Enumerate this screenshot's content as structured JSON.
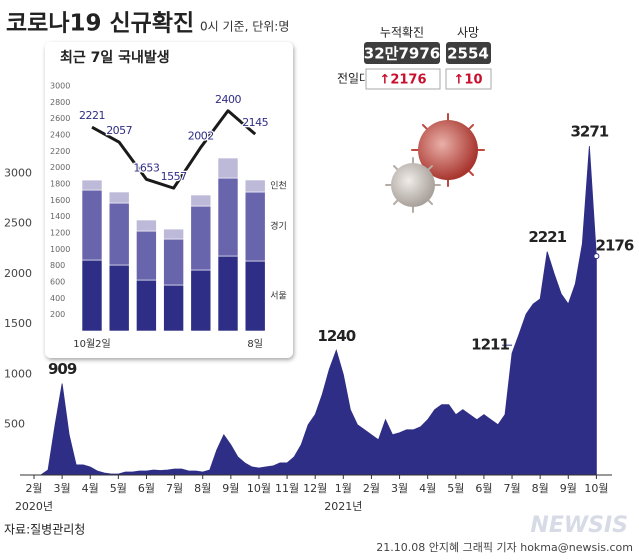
{
  "header": {
    "title": "코로나19 신규확진",
    "subtitle": "0시 기준, 단위:명"
  },
  "stats": {
    "total_label": "누적확진",
    "total_value": "32만7976",
    "death_label": "사망",
    "death_value": "2554",
    "change_label": "전일대비",
    "total_change": "↑2176",
    "death_change": "↑10"
  },
  "chart_data": [
    {
      "type": "area",
      "color": "#2f2e86",
      "categories": [
        "2월",
        null,
        null,
        null,
        "3월",
        null,
        null,
        null,
        "4월",
        null,
        null,
        null,
        "5월",
        null,
        null,
        null,
        "6월",
        null,
        null,
        null,
        "7월",
        null,
        null,
        null,
        "8월",
        null,
        null,
        null,
        "9월",
        null,
        null,
        null,
        "10월",
        null,
        null,
        null,
        "11월",
        null,
        null,
        null,
        "12월",
        null,
        null,
        null,
        "1월",
        null,
        null,
        null,
        "2월",
        null,
        null,
        null,
        "3월",
        null,
        null,
        null,
        "4월",
        null,
        null,
        null,
        "5월",
        null,
        null,
        null,
        "6월",
        null,
        null,
        null,
        "7월",
        null,
        null,
        null,
        "8월",
        null,
        null,
        null,
        "9월",
        null,
        null,
        null,
        "10월"
      ],
      "year_labels": [
        "2020년",
        "2021년"
      ],
      "values": [
        1,
        2,
        50,
        500,
        909,
        400,
        100,
        100,
        80,
        40,
        20,
        10,
        10,
        30,
        30,
        40,
        40,
        50,
        45,
        50,
        60,
        60,
        40,
        40,
        30,
        50,
        250,
        400,
        300,
        180,
        120,
        80,
        70,
        80,
        90,
        120,
        120,
        180,
        300,
        500,
        600,
        800,
        1050,
        1240,
        1000,
        650,
        500,
        450,
        400,
        350,
        550,
        400,
        420,
        450,
        450,
        480,
        550,
        650,
        700,
        700,
        600,
        650,
        600,
        550,
        600,
        550,
        500,
        600,
        1211,
        1400,
        1600,
        1700,
        1750,
        2221,
        2000,
        1800,
        1700,
        1900,
        2300,
        3271,
        2176
      ],
      "ylim": [
        0,
        3450
      ],
      "yticks": [
        500,
        1000,
        1500,
        2000,
        2500,
        3000
      ]
    },
    {
      "type": "bar",
      "title": "최근 7일 국내발생",
      "stacked": true,
      "categories": [
        "10월2일",
        null,
        null,
        null,
        null,
        null,
        "8일"
      ],
      "series": [
        {
          "name": "서울",
          "color": "#2f2e86",
          "values": [
            869,
            808,
            624,
            563,
            747,
            918,
            857
          ]
        },
        {
          "name": "경기",
          "color": "#6865ad",
          "values": [
            857,
            759,
            600,
            563,
            783,
            955,
            845
          ]
        },
        {
          "name": "인천",
          "color": "#bdb9d8",
          "values": [
            122,
            135,
            135,
            122,
            135,
            245,
            147
          ]
        },
        {
          "type": "line",
          "color": "#1a1a1a",
          "axis": "y2",
          "values": [
            2221,
            2057,
            1653,
            1557,
            2002,
            2400,
            2145
          ]
        }
      ],
      "ylim": [
        0,
        3000
      ],
      "yticks": [
        200,
        400,
        600,
        800,
        1000,
        1200,
        1400,
        1600,
        1800,
        2000,
        2200,
        2400,
        2600,
        2800,
        3000
      ],
      "y2lim": [
        0,
        2670
      ]
    }
  ],
  "footer": {
    "source": "자료:질병관리청",
    "credit": "21.10.08 안지혜 그래픽 기자 hokma@newsis.com",
    "logo": "NEWSIS"
  }
}
